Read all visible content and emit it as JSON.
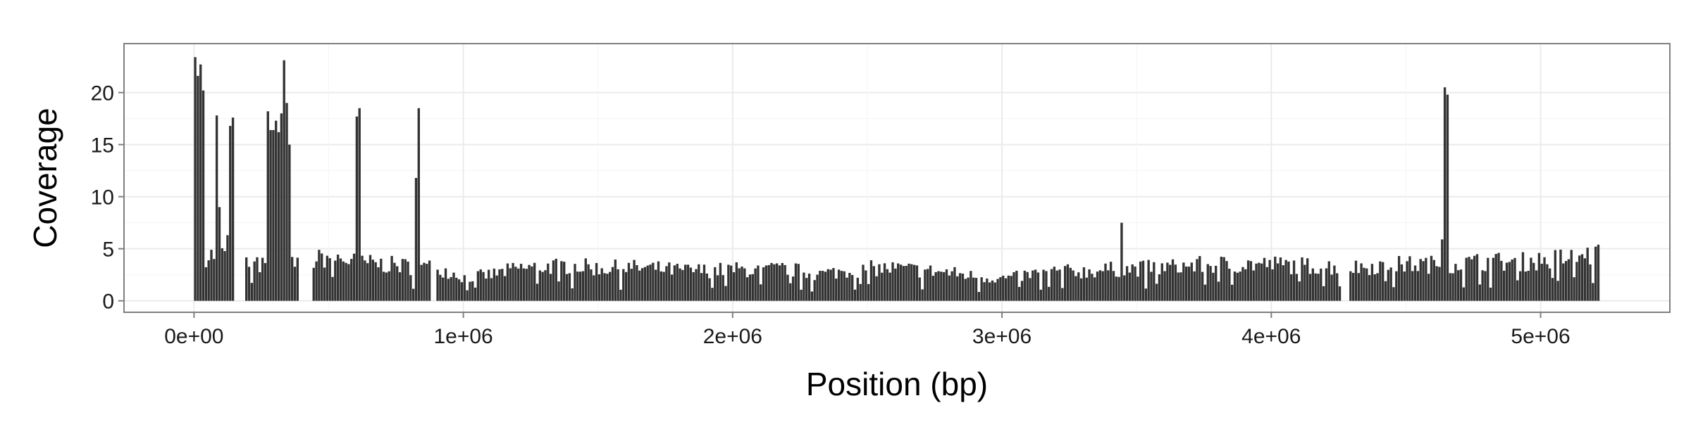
{
  "chart_data": {
    "type": "bar",
    "title": "",
    "xlabel": "Position (bp)",
    "ylabel": "Coverage",
    "xlim": [
      -260000,
      5480000
    ],
    "ylim": [
      -1.1,
      24.7
    ],
    "x_ticks": [
      0,
      1000000,
      2000000,
      3000000,
      4000000,
      5000000
    ],
    "x_tick_labels": [
      "0e+00",
      "1e+06",
      "2e+06",
      "3e+06",
      "4e+06",
      "5e+06"
    ],
    "y_ticks": [
      0,
      5,
      10,
      15,
      20
    ],
    "y_tick_labels": [
      "0",
      "5",
      "10",
      "15",
      "20"
    ],
    "grid": true,
    "legend": "none",
    "bar_color": "#333333",
    "panel_background": "#ffffff",
    "grid_color": "#ebebeb",
    "gaps_bp": [
      [
        150000,
        190000
      ],
      [
        385000,
        440000
      ],
      [
        880000,
        895000
      ],
      [
        4260000,
        4285000
      ]
    ],
    "x_start": 0,
    "x_end": 5220000,
    "bin_width": 10000,
    "baseline": [
      [
        0,
        4.4
      ],
      [
        100000,
        4.6
      ],
      [
        200000,
        3.6
      ],
      [
        300000,
        3.4
      ],
      [
        400000,
        3.7
      ],
      [
        500000,
        4.4
      ],
      [
        600000,
        3.8
      ],
      [
        700000,
        3.6
      ],
      [
        800000,
        3.4
      ],
      [
        900000,
        3.3
      ],
      [
        1000000,
        2.3
      ],
      [
        1100000,
        2.6
      ],
      [
        1200000,
        3.2
      ],
      [
        1300000,
        3.4
      ],
      [
        1400000,
        3.5
      ],
      [
        1500000,
        3.2
      ],
      [
        1600000,
        3.3
      ],
      [
        1700000,
        3.2
      ],
      [
        1800000,
        3.0
      ],
      [
        1900000,
        3.0
      ],
      [
        2000000,
        3.1
      ],
      [
        2100000,
        3.0
      ],
      [
        2200000,
        3.2
      ],
      [
        2300000,
        2.6
      ],
      [
        2400000,
        2.9
      ],
      [
        2500000,
        3.2
      ],
      [
        2600000,
        3.2
      ],
      [
        2700000,
        3.0
      ],
      [
        2800000,
        2.8
      ],
      [
        2900000,
        2.4
      ],
      [
        3000000,
        2.2
      ],
      [
        3100000,
        2.6
      ],
      [
        3200000,
        2.9
      ],
      [
        3300000,
        2.9
      ],
      [
        3400000,
        3.1
      ],
      [
        3500000,
        3.2
      ],
      [
        3600000,
        3.3
      ],
      [
        3700000,
        3.5
      ],
      [
        3800000,
        3.6
      ],
      [
        3900000,
        3.6
      ],
      [
        4000000,
        3.6
      ],
      [
        4100000,
        3.5
      ],
      [
        4200000,
        3.4
      ],
      [
        4300000,
        3.3
      ],
      [
        4400000,
        3.5
      ],
      [
        4500000,
        3.6
      ],
      [
        4600000,
        3.6
      ],
      [
        4700000,
        3.7
      ],
      [
        4800000,
        3.9
      ],
      [
        4900000,
        3.8
      ],
      [
        5000000,
        4.0
      ],
      [
        5100000,
        4.3
      ],
      [
        5220000,
        4.6
      ]
    ],
    "peaks": [
      {
        "x": 5000,
        "y": 23.4
      },
      {
        "x": 15000,
        "y": 21.6
      },
      {
        "x": 25000,
        "y": 22.7
      },
      {
        "x": 35000,
        "y": 20.2
      },
      {
        "x": 85000,
        "y": 17.8
      },
      {
        "x": 95000,
        "y": 9.0
      },
      {
        "x": 120000,
        "y": 6.3
      },
      {
        "x": 135000,
        "y": 16.8
      },
      {
        "x": 145000,
        "y": 17.6
      },
      {
        "x": 275000,
        "y": 18.2
      },
      {
        "x": 285000,
        "y": 16.4
      },
      {
        "x": 295000,
        "y": 16.4
      },
      {
        "x": 305000,
        "y": 17.3
      },
      {
        "x": 315000,
        "y": 16.2
      },
      {
        "x": 325000,
        "y": 18.0
      },
      {
        "x": 335000,
        "y": 23.1
      },
      {
        "x": 345000,
        "y": 19.0
      },
      {
        "x": 355000,
        "y": 15.0
      },
      {
        "x": 605000,
        "y": 17.7
      },
      {
        "x": 615000,
        "y": 18.5
      },
      {
        "x": 825000,
        "y": 11.8
      },
      {
        "x": 835000,
        "y": 18.5
      },
      {
        "x": 3445000,
        "y": 7.5
      },
      {
        "x": 4645000,
        "y": 20.5
      },
      {
        "x": 4655000,
        "y": 19.8
      },
      {
        "x": 4635000,
        "y": 5.9
      },
      {
        "x": 5205000,
        "y": 5.2
      }
    ]
  }
}
